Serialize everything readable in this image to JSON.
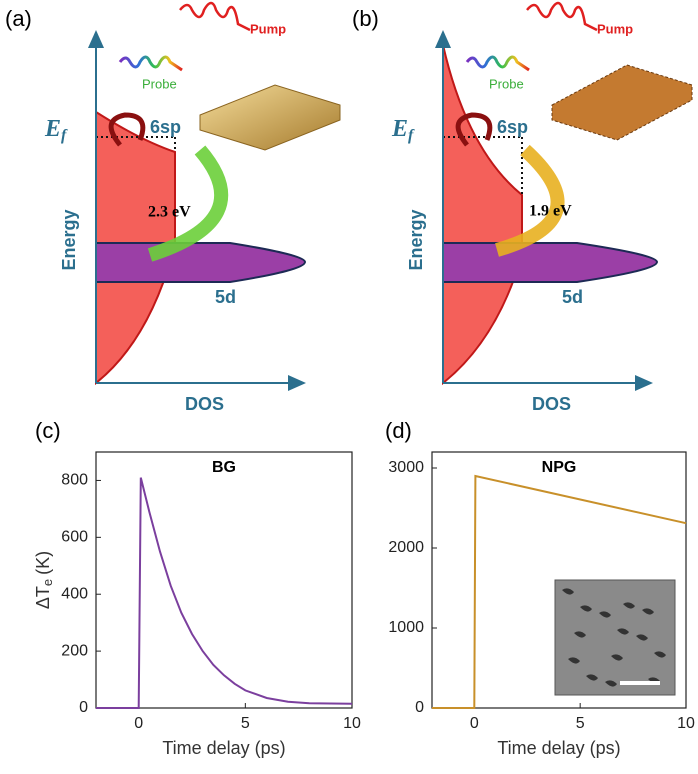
{
  "diagrams": [
    {
      "label": "(a)",
      "pump": "Pump",
      "probe": "Probe",
      "fermi": "E",
      "fermi_sub": "f",
      "band_sp": "6sp",
      "gap": "2.3 eV",
      "ylabel": "Energy",
      "band_d": "5d",
      "xlabel": "DOS"
    },
    {
      "label": "(b)",
      "pump": "Pump",
      "probe": "Probe",
      "fermi": "E",
      "fermi_sub": "f",
      "band_sp": "6sp",
      "gap": "1.9 eV",
      "ylabel": "Energy",
      "band_d": "5d",
      "xlabel": "DOS"
    }
  ],
  "chart_data": [
    {
      "type": "line",
      "label": "(c)",
      "title": "BG",
      "xlabel": "Time delay (ps)",
      "ylabel": "ΔT",
      "ylabel_sub": "e",
      "ylabel_unit": "(K)",
      "x": [
        -2,
        0,
        0.1,
        0.5,
        1,
        1.5,
        2,
        2.5,
        3,
        3.5,
        4,
        4.5,
        5,
        6,
        7,
        8,
        10
      ],
      "values": [
        0,
        0,
        810,
        690,
        550,
        430,
        335,
        260,
        200,
        152,
        115,
        85,
        62,
        35,
        22,
        17,
        15
      ],
      "color": "#7b3f9e",
      "xlim": [
        -2,
        10
      ],
      "ylim": [
        0,
        900
      ],
      "xticks": [
        0,
        5,
        10
      ],
      "yticks": [
        0,
        200,
        400,
        600,
        800
      ]
    },
    {
      "type": "line",
      "label": "(d)",
      "title": "NPG",
      "xlabel": "Time delay (ps)",
      "x": [
        -2,
        0,
        0.05,
        10
      ],
      "values": [
        0,
        0,
        2900,
        2310
      ],
      "color": "#c8902a",
      "xlim": [
        -2,
        10
      ],
      "ylim": [
        0,
        3200
      ],
      "xticks": [
        0,
        5,
        10
      ],
      "yticks": [
        0,
        1000,
        2000,
        3000
      ]
    }
  ]
}
